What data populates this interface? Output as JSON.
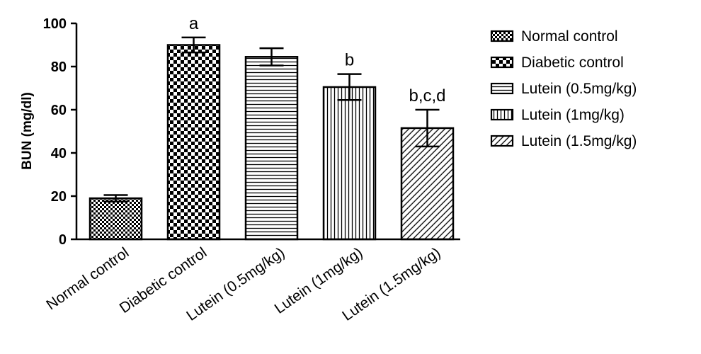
{
  "chart_data": {
    "type": "bar",
    "title": "",
    "xlabel": "",
    "ylabel": "BUN (mg/dl)",
    "ylim": [
      0,
      100
    ],
    "yticks": [
      "0",
      "20",
      "40",
      "60",
      "80",
      "100"
    ],
    "categories": [
      "Normal  control",
      "Diabetic control",
      "Lutein (0.5mg/kg)",
      "Lutein  (1mg/kg)",
      "Lutein (1.5mg/kg)"
    ],
    "values": [
      19,
      90,
      84.5,
      70.5,
      51.5
    ],
    "errors": [
      1.5,
      3.5,
      4.0,
      6.0,
      8.5
    ],
    "annotations": [
      "",
      "a",
      "",
      "b",
      "b,c,d"
    ],
    "patterns": [
      "dense-check",
      "checker",
      "horizontal-lines",
      "vertical-lines",
      "diagonal-lines"
    ],
    "legend": {
      "position": "right",
      "entries": [
        "Normal  control",
        "Diabetic control",
        "Lutein (0.5mg/kg)",
        "Lutein  (1mg/kg)",
        "Lutein (1.5mg/kg)"
      ]
    },
    "grid": false,
    "colors": {
      "bar_stroke": "#000000",
      "background": "#ffffff"
    }
  }
}
